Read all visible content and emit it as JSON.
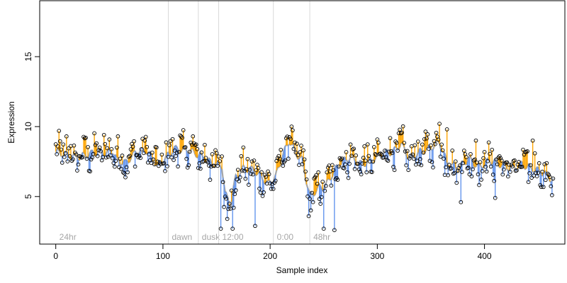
{
  "chart_data": {
    "type": "scatter",
    "title": "",
    "xlabel": "Sample index",
    "ylabel": "Expression",
    "xlim": [
      -15,
      475
    ],
    "ylim": [
      1.6,
      19.0
    ],
    "xticks": [
      0,
      100,
      200,
      300,
      400
    ],
    "yticks": [
      5,
      10,
      15
    ],
    "vlines": [
      {
        "x": 0,
        "label": "24hr",
        "line": false
      },
      {
        "x": 105,
        "label": "dawn",
        "line": true
      },
      {
        "x": 133,
        "label": "dusk",
        "line": true
      },
      {
        "x": 152,
        "label": "12:00",
        "line": true
      },
      {
        "x": 203,
        "label": "0:00",
        "line": true
      },
      {
        "x": 237,
        "label": "48hr",
        "line": true
      }
    ],
    "colors": {
      "fitted_line": "#a6a6a6",
      "residual_above": "#ffa500",
      "residual_below": "#6495ed",
      "points": "#000000",
      "vline": "#d9d9d9",
      "vline_label": "#a6a6a6"
    },
    "anchors": [
      [
        0,
        8.2
      ],
      [
        20,
        7.8
      ],
      [
        40,
        8.2
      ],
      [
        48,
        8.1
      ],
      [
        53,
        8.3
      ],
      [
        57,
        7.6
      ],
      [
        65,
        7.4
      ],
      [
        75,
        8.2
      ],
      [
        85,
        8.3
      ],
      [
        95,
        7.2
      ],
      [
        103,
        7.8
      ],
      [
        110,
        8.4
      ],
      [
        125,
        8.3
      ],
      [
        135,
        7.9
      ],
      [
        145,
        7.4
      ],
      [
        155,
        7.2
      ],
      [
        158,
        5.2
      ],
      [
        163,
        4.4
      ],
      [
        168,
        6.4
      ],
      [
        175,
        7.0
      ],
      [
        185,
        6.9
      ],
      [
        192,
        6.4
      ],
      [
        198,
        5.9
      ],
      [
        205,
        6.4
      ],
      [
        212,
        8.0
      ],
      [
        218,
        9.0
      ],
      [
        224,
        8.1
      ],
      [
        230,
        7.6
      ],
      [
        237,
        5.0
      ],
      [
        245,
        5.6
      ],
      [
        252,
        5.8
      ],
      [
        258,
        6.6
      ],
      [
        265,
        7.4
      ],
      [
        275,
        7.8
      ],
      [
        285,
        7.3
      ],
      [
        295,
        7.6
      ],
      [
        305,
        8.1
      ],
      [
        315,
        8.2
      ],
      [
        322,
        8.8
      ],
      [
        330,
        7.7
      ],
      [
        340,
        8.2
      ],
      [
        350,
        8.5
      ],
      [
        358,
        8.9
      ],
      [
        365,
        7.4
      ],
      [
        375,
        7.0
      ],
      [
        385,
        7.7
      ],
      [
        395,
        7.1
      ],
      [
        405,
        7.6
      ],
      [
        415,
        7.3
      ],
      [
        425,
        7.0
      ],
      [
        435,
        7.3
      ],
      [
        445,
        7.0
      ],
      [
        455,
        6.7
      ],
      [
        463,
        6.2
      ]
    ],
    "highlights": [
      [
        10,
        9.3
      ],
      [
        28,
        9.2
      ],
      [
        45,
        9.4
      ],
      [
        58,
        9.3
      ],
      [
        118,
        9.2
      ],
      [
        128,
        9.3
      ],
      [
        154,
        2.7
      ],
      [
        160,
        3.4
      ],
      [
        165,
        2.7
      ],
      [
        166,
        4.2
      ],
      [
        186,
        2.9
      ],
      [
        220,
        10.0
      ],
      [
        236,
        3.6
      ],
      [
        250,
        2.7
      ],
      [
        260,
        2.6
      ],
      [
        358,
        10.2
      ],
      [
        365,
        9.8
      ],
      [
        378,
        4.6
      ],
      [
        392,
        9.0
      ],
      [
        410,
        4.9
      ],
      [
        445,
        9.0
      ],
      [
        463,
        5.1
      ]
    ]
  }
}
